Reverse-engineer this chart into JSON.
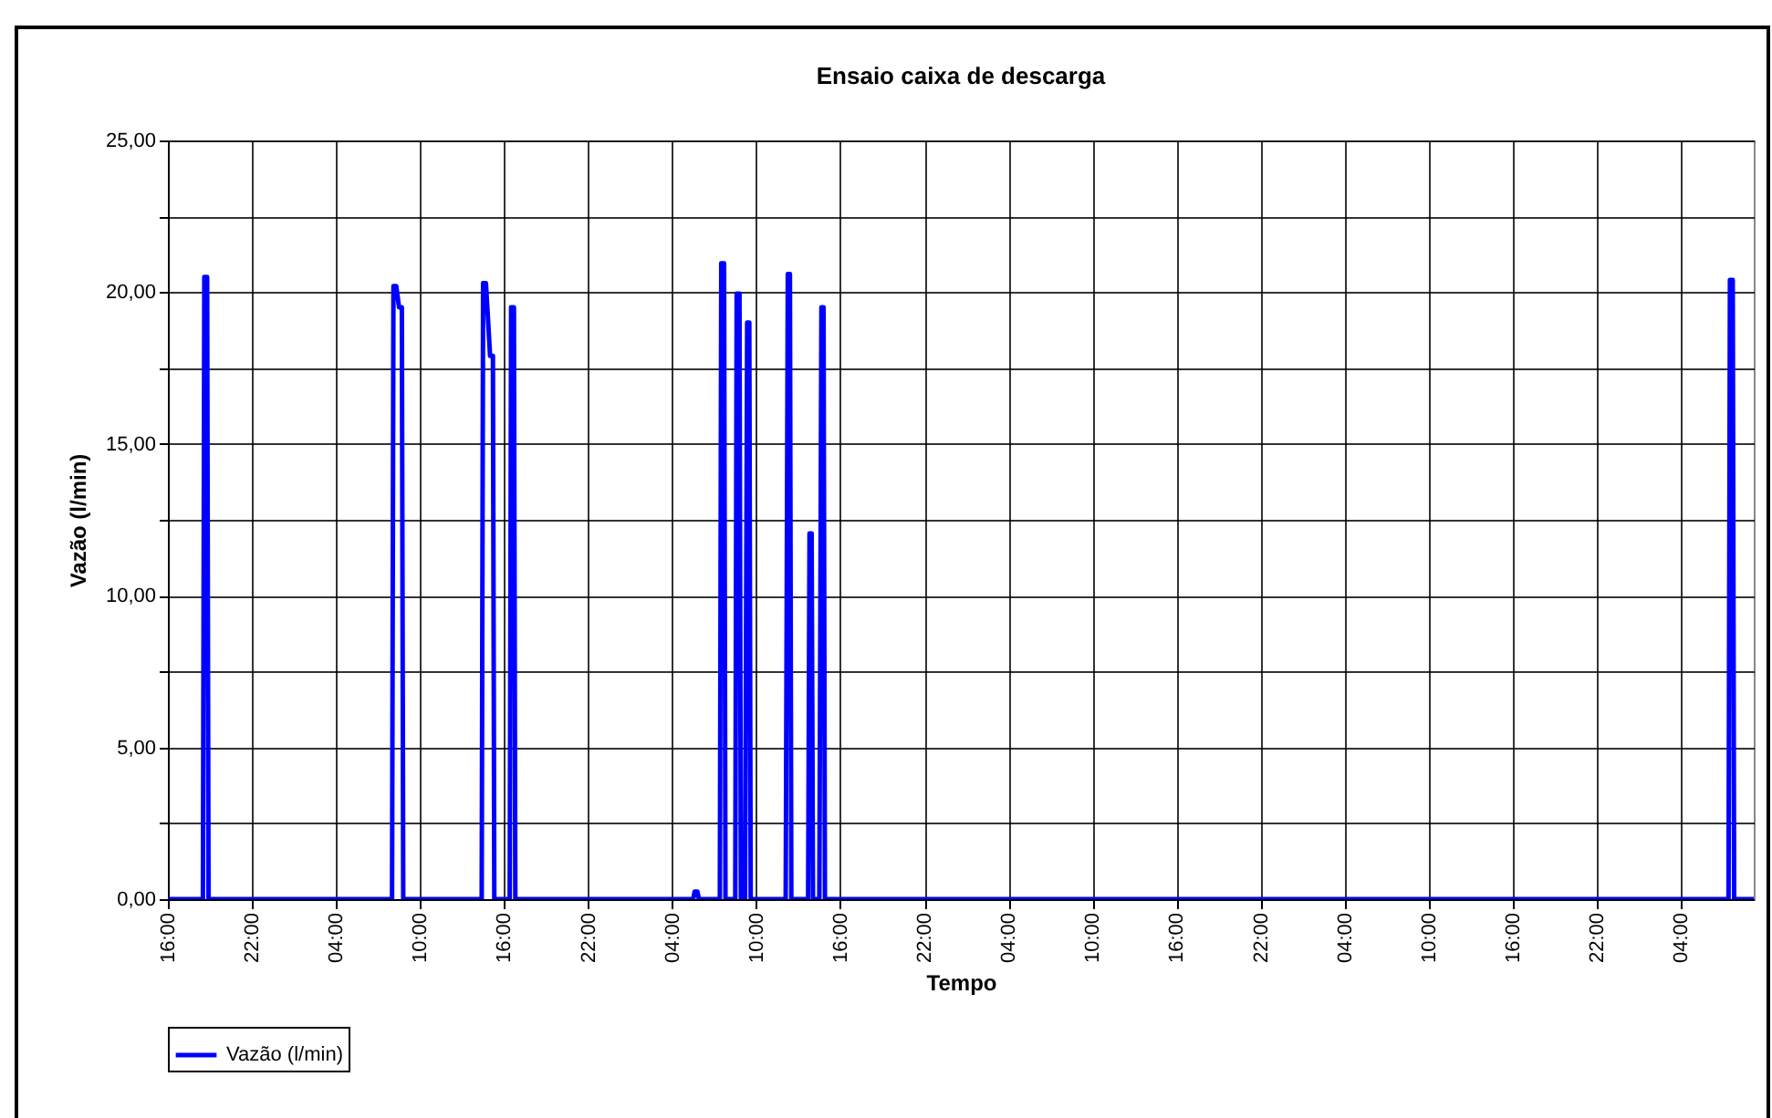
{
  "chart_data": {
    "type": "line",
    "title": "Ensaio caixa de descarga",
    "xlabel": "Tempo",
    "ylabel": "Vazão (l/min)",
    "x": [
      "--01-01T16:00",
      "--01-01T18:30",
      "--01-01T18:36",
      "--01-01T18:48",
      "--01-01T18:54",
      "--01-02T08:00",
      "--01-02T08:06",
      "--01-02T08:18",
      "--01-02T08:30",
      "--01-02T08:42",
      "--01-02T08:48",
      "--01-02T14:24",
      "--01-02T14:30",
      "--01-02T14:42",
      "--01-02T15:00",
      "--01-02T15:12",
      "--01-02T15:18",
      "--01-02T16:24",
      "--01-02T16:30",
      "--01-02T16:42",
      "--01-02T16:48",
      "--01-03T05:30",
      "--01-03T05:36",
      "--01-03T05:48",
      "--01-03T05:54",
      "--01-03T07:24",
      "--01-03T07:30",
      "--01-03T07:42",
      "--01-03T07:48",
      "--01-03T08:30",
      "--01-03T08:36",
      "--01-03T08:48",
      "--01-03T08:54",
      "--01-03T09:12",
      "--01-03T09:21",
      "--01-03T09:30",
      "--01-03T09:36",
      "--01-03T12:06",
      "--01-03T12:15",
      "--01-03T12:24",
      "--01-03T12:30",
      "--01-03T13:42",
      "--01-03T13:48",
      "--01-03T13:57",
      "--01-03T14:03",
      "--01-03T14:30",
      "--01-03T14:39",
      "--01-03T14:48",
      "--01-03T14:54",
      "--01-06T07:24",
      "--01-06T07:30",
      "--01-06T07:42",
      "--01-06T07:48",
      "--01-06T09:12"
    ],
    "series": [
      {
        "name": "Vazão (l/min)",
        "color": "#0000ff",
        "values": [
          0,
          0,
          20.5,
          20.5,
          0,
          0,
          20.2,
          20.2,
          19.5,
          19.5,
          0,
          0,
          20.3,
          20.3,
          17.9,
          17.9,
          0,
          0,
          19.5,
          19.5,
          0,
          0,
          0.25,
          0.25,
          0,
          0,
          20.95,
          20.95,
          0,
          0,
          19.95,
          19.95,
          0,
          0,
          19.0,
          19.0,
          0,
          0,
          20.6,
          20.6,
          0,
          0,
          12.05,
          12.05,
          0,
          0,
          19.5,
          19.5,
          0,
          0,
          20.4,
          20.4,
          0,
          0
        ]
      }
    ],
    "xlim": [
      "--01-01T16:00",
      "--01-06T09:12"
    ],
    "xticks": [
      {
        "value": "--01-01T16:00",
        "label": "16:00"
      },
      {
        "value": "--01-01T22:00",
        "label": "22:00"
      },
      {
        "value": "--01-02T04:00",
        "label": "04:00"
      },
      {
        "value": "--01-02T10:00",
        "label": "10:00"
      },
      {
        "value": "--01-02T16:00",
        "label": "16:00"
      },
      {
        "value": "--01-02T22:00",
        "label": "22:00"
      },
      {
        "value": "--01-03T04:00",
        "label": "04:00"
      },
      {
        "value": "--01-03T10:00",
        "label": "10:00"
      },
      {
        "value": "--01-03T16:00",
        "label": "16:00"
      },
      {
        "value": "--01-03T22:00",
        "label": "22:00"
      },
      {
        "value": "--01-04T04:00",
        "label": "04:00"
      },
      {
        "value": "--01-04T10:00",
        "label": "10:00"
      },
      {
        "value": "--01-04T16:00",
        "label": "16:00"
      },
      {
        "value": "--01-04T22:00",
        "label": "22:00"
      },
      {
        "value": "--01-05T04:00",
        "label": "04:00"
      },
      {
        "value": "--01-05T10:00",
        "label": "10:00"
      },
      {
        "value": "--01-05T16:00",
        "label": "16:00"
      },
      {
        "value": "--01-05T22:00",
        "label": "22:00"
      },
      {
        "value": "--01-06T04:00",
        "label": "04:00"
      }
    ],
    "ylim": [
      0,
      25
    ],
    "yticks": [
      {
        "value": 0,
        "label": "0,00"
      },
      {
        "value": 2.5,
        "label": null
      },
      {
        "value": 5,
        "label": "5,00"
      },
      {
        "value": 7.5,
        "label": null
      },
      {
        "value": 10,
        "label": "10,00"
      },
      {
        "value": 12.5,
        "label": null
      },
      {
        "value": 15,
        "label": "15,00"
      },
      {
        "value": 17.5,
        "label": null
      },
      {
        "value": 20,
        "label": "20,00"
      },
      {
        "value": 22.5,
        "label": null
      },
      {
        "value": 25,
        "label": "25,00"
      }
    ],
    "grid": true,
    "legend": "bottom"
  }
}
